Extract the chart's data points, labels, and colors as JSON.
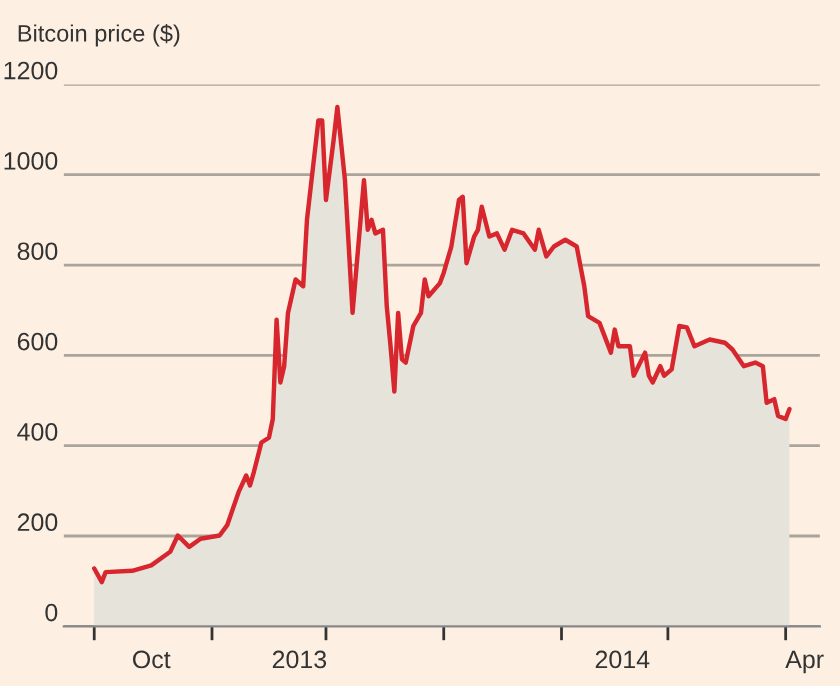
{
  "chart_data": {
    "type": "area",
    "title": "Bitcoin price ($)",
    "x": [
      "2013-10-01",
      "2013-10-03",
      "2013-10-04",
      "2013-10-11",
      "2013-10-16",
      "2013-10-21",
      "2013-10-23",
      "2013-10-26",
      "2013-10-29",
      "2013-11-03",
      "2013-11-05",
      "2013-11-08",
      "2013-11-10",
      "2013-11-11",
      "2013-11-12",
      "2013-11-14",
      "2013-11-16",
      "2013-11-17",
      "2013-11-18",
      "2013-11-19",
      "2013-11-20",
      "2013-11-21",
      "2013-11-23",
      "2013-11-25",
      "2013-11-26",
      "2013-11-29",
      "2013-11-30",
      "2013-12-01",
      "2013-12-03",
      "2013-12-04",
      "2013-12-06",
      "2013-12-08",
      "2013-12-11",
      "2013-12-12",
      "2013-12-13",
      "2013-12-14",
      "2013-12-16",
      "2013-12-17",
      "2013-12-18",
      "2013-12-19",
      "2013-12-20",
      "2013-12-21",
      "2013-12-22",
      "2013-12-24",
      "2013-12-26",
      "2013-12-27",
      "2013-12-28",
      "2013-12-31",
      "2014-01-01",
      "2014-01-03",
      "2014-01-05",
      "2014-01-06",
      "2014-01-07",
      "2014-01-09",
      "2014-01-10",
      "2014-01-11",
      "2014-01-13",
      "2014-01-15",
      "2014-01-17",
      "2014-01-19",
      "2014-01-22",
      "2014-01-25",
      "2014-01-26",
      "2014-01-28",
      "2014-01-30",
      "2014-02-02",
      "2014-02-05",
      "2014-02-07",
      "2014-02-08",
      "2014-02-11",
      "2014-02-14",
      "2014-02-15",
      "2014-02-16",
      "2014-02-19",
      "2014-02-20",
      "2014-02-23",
      "2014-02-24",
      "2014-02-25",
      "2014-02-27",
      "2014-02-28",
      "2014-03-02",
      "2014-03-04",
      "2014-03-06",
      "2014-03-08",
      "2014-03-12",
      "2014-03-16",
      "2014-03-18",
      "2014-03-21",
      "2014-03-24",
      "2014-03-26",
      "2014-03-27",
      "2014-03-29",
      "2014-03-30",
      "2014-04-01",
      "2014-04-02"
    ],
    "series": [
      {
        "color": "#d7262e",
        "values": [
          128,
          98,
          120,
          123,
          135,
          165,
          201,
          176,
          194,
          201,
          224,
          297,
          334,
          312,
          341,
          407,
          418,
          459,
          679,
          540,
          576,
          694,
          768,
          753,
          900,
          1120,
          1120,
          944,
          1076,
          1150,
          988,
          694,
          988,
          878,
          900,
          870,
          878,
          709,
          620,
          520,
          694,
          591,
          584,
          665,
          694,
          768,
          731,
          760,
          783,
          841,
          944,
          951,
          804,
          863,
          878,
          929,
          863,
          870,
          834,
          878,
          870,
          834,
          878,
          819,
          841,
          856,
          841,
          753,
          687,
          672,
          606,
          657,
          620,
          620,
          555,
          606,
          555,
          540,
          576,
          555,
          569,
          665,
          662,
          620,
          635,
          628,
          613,
          576,
          584,
          576,
          495,
          503,
          466,
          459,
          481
        ]
      }
    ],
    "xlim": [
      "2013-09-23",
      "2014-04-10"
    ],
    "xticks": [
      {
        "value": "2013-10-01",
        "label": null
      },
      {
        "value": "2013-10-16",
        "label": "Oct"
      },
      {
        "value": "2013-11-01",
        "label": null
      },
      {
        "value": "2013-11-24",
        "label": "2013"
      },
      {
        "value": "2013-12-01",
        "label": null
      },
      {
        "value": "2014-01-01",
        "label": null
      },
      {
        "value": "2014-02-01",
        "label": null
      },
      {
        "value": "2014-02-17",
        "label": "2014"
      },
      {
        "value": "2014-03-01",
        "label": null
      },
      {
        "value": "2014-04-01",
        "label": null
      },
      {
        "value": "2014-04-06",
        "label": "Apr"
      }
    ],
    "ylim": [
      0,
      1200
    ],
    "yticks": [
      0,
      200,
      400,
      600,
      800,
      1000,
      1200
    ],
    "grid": "y"
  }
}
